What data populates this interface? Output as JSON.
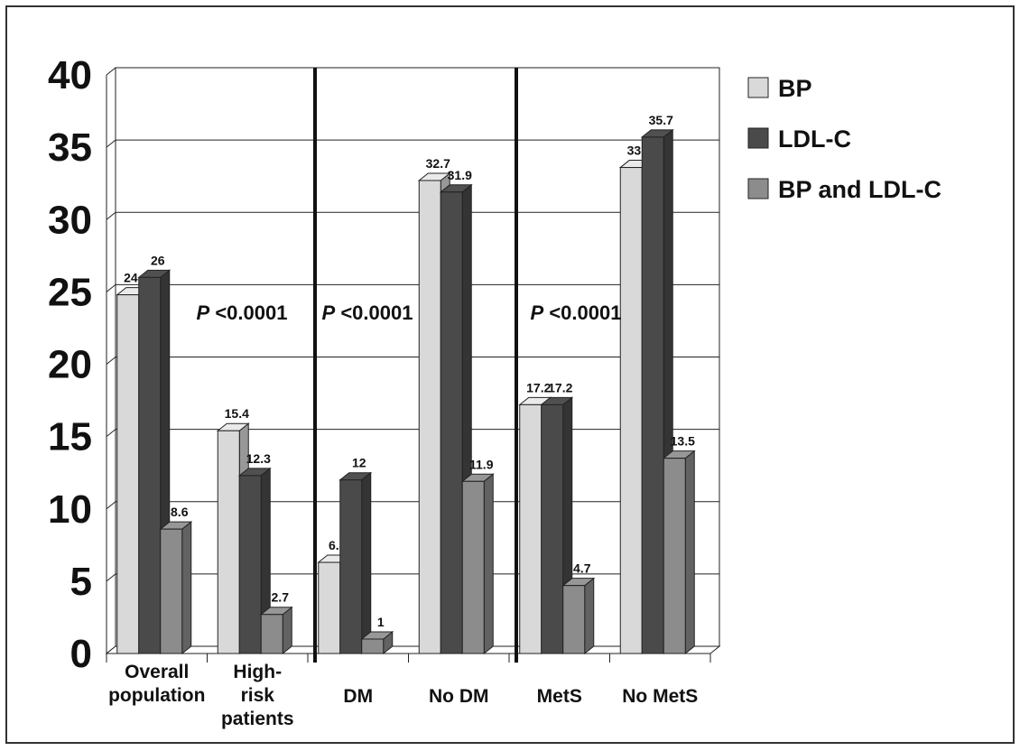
{
  "chart_data": {
    "type": "bar",
    "categories": [
      [
        "Overall",
        "population"
      ],
      [
        "High-",
        "risk",
        "patients"
      ],
      [
        "DM"
      ],
      [
        "No DM"
      ],
      [
        "MetS"
      ],
      [
        "No MetS"
      ]
    ],
    "series": [
      {
        "name": "BP",
        "values": [
          24.8,
          15.4,
          6.3,
          32.7,
          17.2,
          33.6
        ],
        "color": "#d9d9d9"
      },
      {
        "name": "LDL-C",
        "values": [
          26,
          12.3,
          12,
          31.9,
          17.2,
          35.7
        ],
        "color": "#4a4a4a"
      },
      {
        "name": "BP and LDL-C",
        "values": [
          8.6,
          2.7,
          1,
          11.9,
          4.7,
          13.5
        ],
        "color": "#8c8c8c"
      }
    ],
    "ylim": [
      0,
      40
    ],
    "yticks": [
      0,
      5,
      10,
      15,
      20,
      25,
      30,
      35,
      40
    ],
    "grid": true,
    "legend": "right",
    "annotations": [
      {
        "italic": "P",
        "text": " <0.0001"
      },
      {
        "italic": "P",
        "text": " <0.0001"
      },
      {
        "italic": "P",
        "text": " <0.0001"
      }
    ]
  }
}
